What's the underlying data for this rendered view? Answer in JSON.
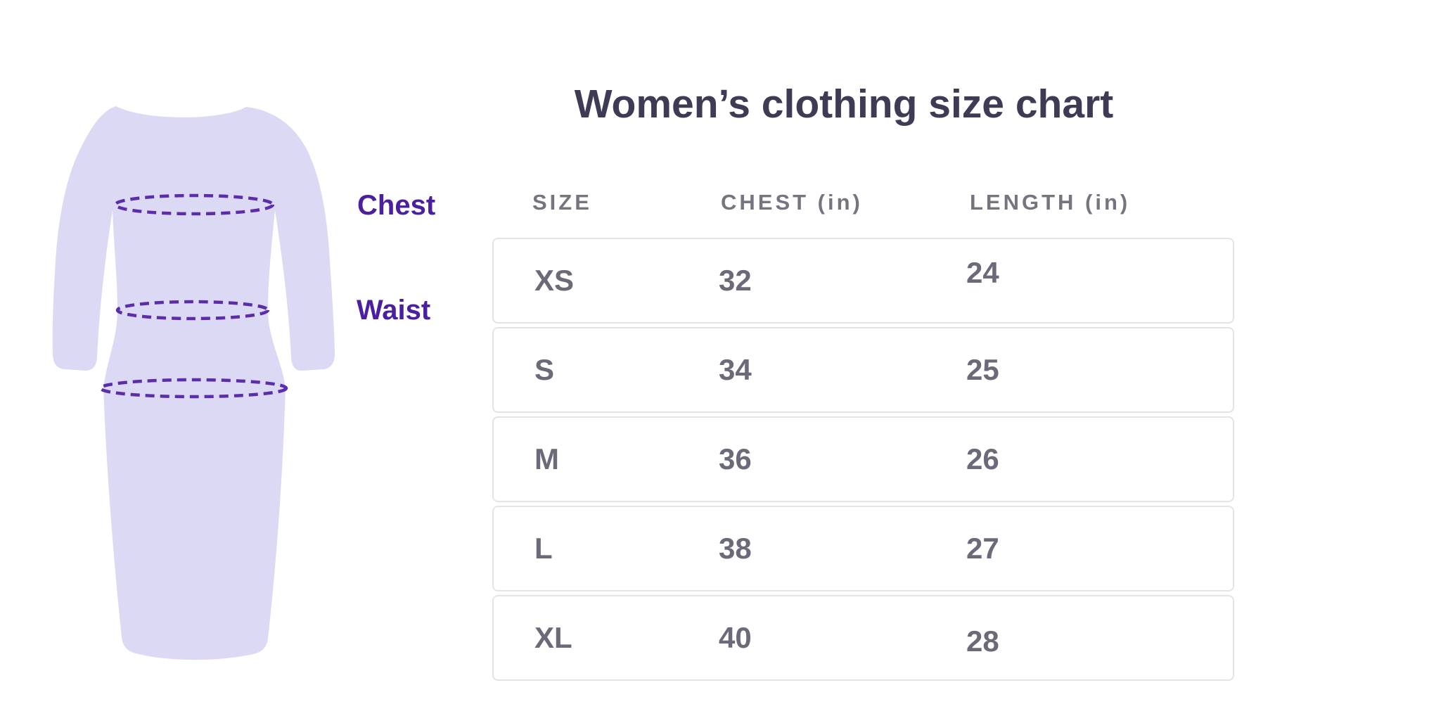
{
  "title": "Women’s clothing size chart",
  "diagram": {
    "chest_label": "Chest",
    "waist_label": "Waist"
  },
  "table": {
    "headers": [
      "SIZE",
      "CHEST (in)",
      "LENGTH (in)"
    ],
    "rows": [
      {
        "size": "XS",
        "chest": "32",
        "length": "24"
      },
      {
        "size": "S",
        "chest": "34",
        "length": "25"
      },
      {
        "size": "M",
        "chest": "36",
        "length": "26"
      },
      {
        "size": "L",
        "chest": "38",
        "length": "27"
      },
      {
        "size": "XL",
        "chest": "40",
        "length": "28"
      }
    ]
  },
  "chart_data": {
    "type": "table",
    "title": "Women’s clothing size chart",
    "columns": [
      "SIZE",
      "CHEST (in)",
      "LENGTH (in)"
    ],
    "rows": [
      [
        "XS",
        "32",
        "24"
      ],
      [
        "S",
        "34",
        "25"
      ],
      [
        "M",
        "36",
        "26"
      ],
      [
        "L",
        "38",
        "27"
      ],
      [
        "XL",
        "40",
        "28"
      ]
    ],
    "annotations": [
      "Chest",
      "Waist"
    ]
  },
  "colors": {
    "title_text": "#3e3b55",
    "header_text": "#76747f",
    "cell_text": "#6c6a78",
    "label_purple": "#4a1fa0",
    "dash_purple": "#5b2da8",
    "dress_fill": "#dcd9f5",
    "row_border": "#e4e4e6",
    "background": "#ffffff"
  }
}
